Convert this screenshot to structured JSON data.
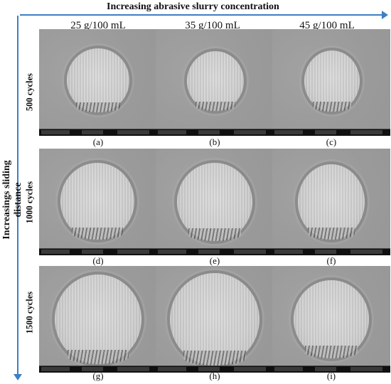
{
  "titles": {
    "horizontal": "Increasing abrasive slurry concentration",
    "vertical": "Increasings sliding distance"
  },
  "columns": [
    "25 g/100 mL",
    "35 g/100 mL",
    "45 g/100 mL"
  ],
  "rows": [
    "500 cycles",
    "1000 cycles",
    "1500 cycles"
  ],
  "panels": [
    "(a)",
    "(b)",
    "(c)",
    "(d)",
    "(e)",
    "(f)",
    "(g)",
    "(h)",
    "(i)"
  ],
  "colors": {
    "arrow": "#3d7fc4"
  }
}
